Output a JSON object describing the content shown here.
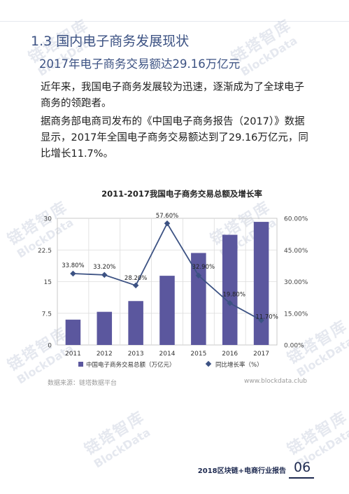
{
  "section_title": "1.3 国内电子商务发展现状",
  "subtitle": "2017年电子商务交易额达29.16万亿元",
  "paragraphs": [
    "近年来，我国电子商务发展较为迅速，逐渐成为了全球电子商务的领跑者。",
    "据商务部电商司发布的《中国电子商务报告（2017）》数据显示，2017年全国电子商务交易额达到了29.16万亿元，同比增长11.7%。"
  ],
  "watermark": {
    "zh": "链塔智库",
    "en": "BlockData"
  },
  "chart_data": {
    "type": "bar",
    "title": "2011-2017我国电子商务交易总额及增长率",
    "categories": [
      "2011",
      "2012",
      "2013",
      "2014",
      "2015",
      "2016",
      "2017"
    ],
    "series": [
      {
        "name": "中国电子商务交易总额（万亿元）",
        "type": "bar",
        "axis": "left",
        "values": [
          6.0,
          7.85,
          10.4,
          16.39,
          21.79,
          26.1,
          29.16
        ]
      },
      {
        "name": "同比增长率（%）",
        "type": "line",
        "axis": "right",
        "values": [
          33.8,
          33.2,
          28.2,
          57.6,
          32.9,
          19.8,
          11.7
        ],
        "labels": [
          "33.80%",
          "33.20%",
          "28.20%",
          "57.60%",
          "32.90%",
          "19.80%",
          "11.70%"
        ]
      }
    ],
    "left_axis": {
      "ticks": [
        "0",
        "7.5",
        "15",
        "22.5",
        "30"
      ],
      "ylim": [
        0,
        30
      ]
    },
    "right_axis": {
      "ticks": [
        "0.00%",
        "15.00%",
        "30.00%",
        "45.00%",
        "60.00%"
      ],
      "ylim": [
        0,
        60
      ]
    },
    "grid": true,
    "legend_position": "bottom",
    "bar_color": "#5b579e",
    "line_color": "#3c5283"
  },
  "source": "数据来源：链塔数据平台",
  "site": "www.blockdata.club",
  "footer": {
    "label": "2018区块链+电商行业报告",
    "page": "06"
  }
}
